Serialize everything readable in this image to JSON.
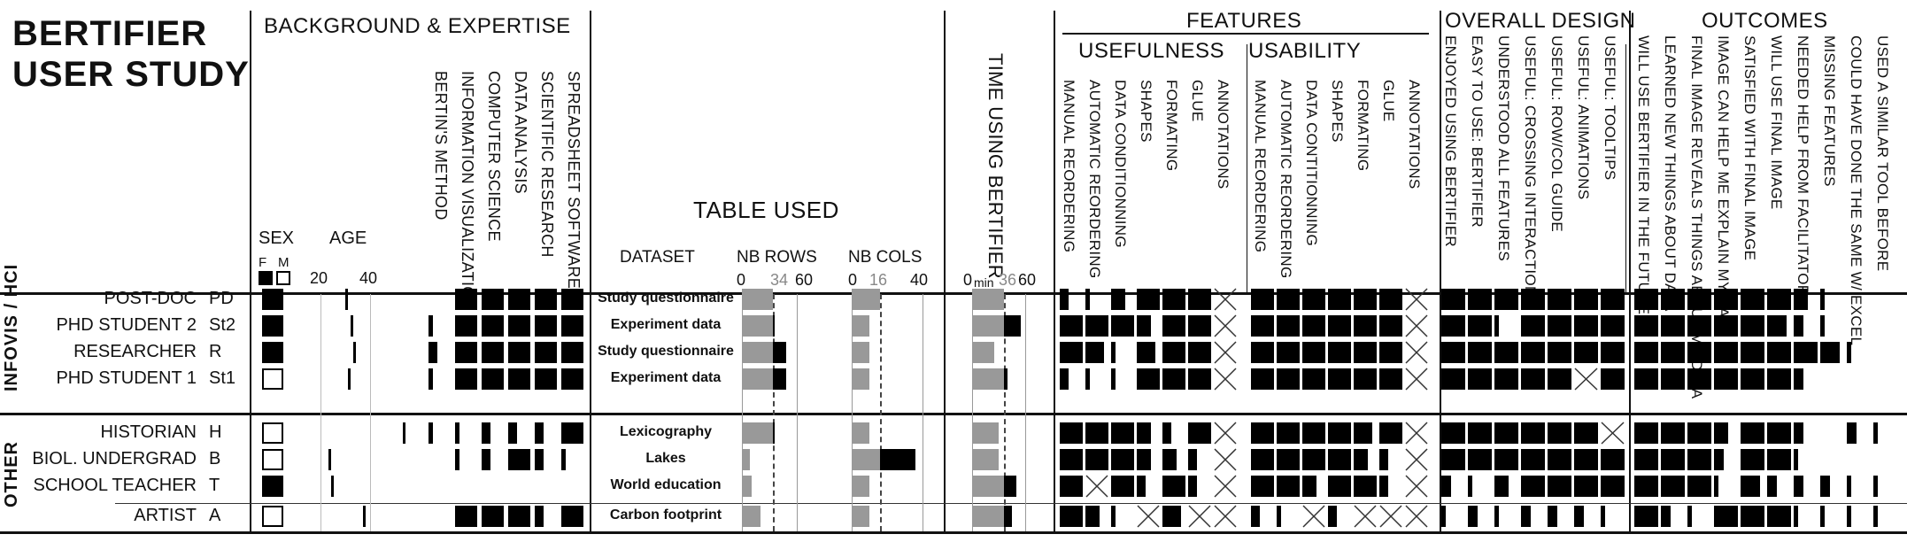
{
  "title": [
    "BERTIFIER",
    "USER STUDY"
  ],
  "sections": {
    "background": "BACKGROUND & EXPERTISE",
    "table_used": "TABLE USED",
    "features": "FEATURES",
    "usefulness": "USEFULNESS",
    "usability": "USABILITY",
    "overall": "OVERALL DESIGN",
    "outcomes": "OUTCOMES"
  },
  "labels": {
    "sex": "SEX",
    "f": "F",
    "m": "M",
    "age": "AGE",
    "age_ticks": [
      "20",
      "40"
    ],
    "dataset": "DATASET",
    "nb_rows": "NB ROWS",
    "rows_ticks": [
      "0",
      "34",
      "60"
    ],
    "nb_cols": "NB COLS",
    "cols_ticks": [
      "0",
      "16",
      "40"
    ],
    "time": "TIME USING BERTIFIER",
    "time_ticks": [
      "0",
      "min",
      "36",
      "60"
    ]
  },
  "expertise_cols": [
    "BERTIN'S METHOD",
    "INFORMATION VISUALIZATION",
    "COMPUTER SCIENCE",
    "DATA ANALYSIS",
    "SCIENTIFIC RESEARCH",
    "SPREADSHEET SOFTWARE"
  ],
  "usefulness_cols": [
    "MANUAL REORDERING",
    "AUTOMATIC REORDERING",
    "DATA CONDITIONNING",
    "SHAPES",
    "FORMATING",
    "GLUE",
    "ANNOTATIONS"
  ],
  "usability_cols": [
    "MANUAL REORDERING",
    "AUTOMATIC REORDERING",
    "DATA CONTITIONNING",
    "SHAPES",
    "FORMATING",
    "GLUE",
    "ANNOTATIONS"
  ],
  "overall_cols": [
    "ENJOYED USING BERTIFIER",
    "EASY TO USE: BERTIFIER",
    "UNDERSTOOD ALL FEATURES",
    "USEFUL: CROSSING INTERACTIONS",
    "USEFUL: ROW/COL GUIDE",
    "USEFUL: ANIMATIONS",
    "USEFUL: TOOLTIPS"
  ],
  "outcomes_cols": [
    "WILL USE BERTIFIER IN THE FUTURE",
    "LEARNED NEW THINGS ABOUT DATA",
    "FINAL IMAGE REVEALS THINGS ABOUT MY DATA",
    "IMAGE CAN HELP ME EXPLAIN MY DATA",
    "SATISFIED WITH FINAL IMAGE",
    "WILL USE FINAL IMAGE",
    "NEEDED HELP FROM FACILITATOR",
    "MISSING FEATURES",
    "COULD HAVE DONE THE SAME W/ EXCEL",
    "USED A SIMILAR TOOL BEFORE"
  ],
  "groups": [
    {
      "name": "INFOVIS / HCI",
      "rows": [
        0,
        1,
        2,
        3
      ]
    },
    {
      "name": "OTHER",
      "rows": [
        4,
        5,
        6,
        7
      ]
    }
  ],
  "participants": [
    {
      "label": "POST-DOC",
      "code": "PD",
      "sex": "F",
      "age": 28,
      "expertise": [
        0,
        5,
        5,
        5,
        5,
        5
      ],
      "dataset": "Study questionnaire",
      "rows": 34,
      "cols": 16,
      "time": 36,
      "usefulness": [
        2,
        1,
        3,
        5,
        5,
        5,
        "x"
      ],
      "usability": [
        5,
        5,
        5,
        5,
        5,
        5,
        "x"
      ],
      "overall": [
        5,
        5,
        5,
        5,
        5,
        5,
        5
      ],
      "outcomes": [
        5,
        5,
        5,
        5,
        5,
        5,
        3,
        1,
        0,
        0
      ]
    },
    {
      "label": "PHD STUDENT 2",
      "code": "St2",
      "sex": "F",
      "age": 30,
      "expertise": [
        1,
        5,
        5,
        5,
        5,
        5
      ],
      "dataset": "Experiment data",
      "rows": 36,
      "cols": 10,
      "time": 55,
      "usefulness": [
        5,
        5,
        5,
        3,
        5,
        5,
        "x"
      ],
      "usability": [
        5,
        5,
        5,
        5,
        5,
        5,
        "x"
      ],
      "overall": [
        5,
        5,
        1,
        5,
        5,
        5,
        5
      ],
      "outcomes": [
        5,
        5,
        5,
        5,
        5,
        4,
        2,
        1,
        0,
        0
      ]
    },
    {
      "label": "RESEARCHER",
      "code": "R",
      "sex": "F",
      "age": 31,
      "expertise": [
        2,
        5,
        5,
        5,
        5,
        5
      ],
      "dataset": "Study questionnaire",
      "rows": 48,
      "cols": 10,
      "time": 25,
      "usefulness": [
        5,
        4,
        1,
        4,
        5,
        5,
        "x"
      ],
      "usability": [
        5,
        5,
        5,
        5,
        5,
        5,
        "x"
      ],
      "overall": [
        5,
        5,
        5,
        5,
        5,
        5,
        5
      ],
      "outcomes": [
        5,
        5,
        5,
        5,
        5,
        5,
        5,
        4,
        1,
        0
      ]
    },
    {
      "label": "PHD STUDENT 1",
      "code": "St1",
      "sex": "M",
      "age": 29,
      "expertise": [
        1,
        5,
        5,
        5,
        5,
        5
      ],
      "dataset": "Experiment data",
      "rows": 48,
      "cols": 10,
      "time": 40,
      "usefulness": [
        2,
        1,
        1,
        5,
        5,
        5,
        "x"
      ],
      "usability": [
        5,
        5,
        5,
        5,
        5,
        5,
        "x"
      ],
      "overall": [
        5,
        5,
        5,
        5,
        5,
        "x",
        5
      ],
      "outcomes": [
        5,
        5,
        5,
        5,
        5,
        5,
        2,
        0,
        0,
        0
      ]
    },
    {
      "label": "HISTORIAN",
      "code": "H",
      "sex": "M",
      "age": 51,
      "expertise": [
        1,
        1,
        2,
        2,
        2,
        5
      ],
      "dataset": "Lexicography",
      "rows": 36,
      "cols": 10,
      "time": 30,
      "usefulness": [
        5,
        5,
        5,
        3,
        2,
        5,
        "x"
      ],
      "usability": [
        5,
        5,
        5,
        5,
        4,
        5,
        "x"
      ],
      "overall": [
        5,
        5,
        5,
        5,
        5,
        5,
        "x"
      ],
      "outcomes": [
        5,
        5,
        5,
        3,
        5,
        5,
        2,
        0,
        2,
        1
      ]
    },
    {
      "label": "BIOL. UNDERGRAD",
      "code": "B",
      "sex": "M",
      "age": 21,
      "expertise": [
        0,
        1,
        2,
        5,
        2,
        1
      ],
      "dataset": "Lakes",
      "rows": 9,
      "cols": 36,
      "time": 30,
      "usefulness": [
        5,
        5,
        5,
        3,
        3,
        2,
        "x"
      ],
      "usability": [
        5,
        5,
        5,
        5,
        3,
        2,
        "x"
      ],
      "overall": [
        5,
        5,
        5,
        5,
        5,
        5,
        5
      ],
      "outcomes": [
        5,
        5,
        5,
        2,
        5,
        5,
        1,
        0,
        0,
        0
      ]
    },
    {
      "label": "SCHOOL TEACHER",
      "code": "T",
      "sex": "F",
      "age": 22,
      "expertise": [
        0,
        0,
        0,
        0,
        0,
        0
      ],
      "dataset": "World education",
      "rows": 11,
      "cols": 10,
      "time": 50,
      "usefulness": [
        5,
        "x",
        5,
        2,
        5,
        2,
        "x"
      ],
      "usability": [
        5,
        5,
        3,
        5,
        5,
        2,
        "x"
      ],
      "overall": [
        2,
        1,
        3,
        5,
        5,
        5,
        5
      ],
      "outcomes": [
        5,
        5,
        5,
        1,
        4,
        2,
        2,
        2,
        1,
        1
      ]
    },
    {
      "label": "ARTIST",
      "code": "A",
      "sex": "M",
      "age": 35,
      "expertise": [
        0,
        5,
        5,
        5,
        2,
        5
      ],
      "dataset": "Carbon footprint",
      "rows": 20,
      "cols": 10,
      "time": 45,
      "usefulness": [
        5,
        3,
        1,
        "x",
        4,
        "x",
        "x"
      ],
      "usability": [
        2,
        1,
        "x",
        2,
        "x",
        "x",
        "x"
      ],
      "overall": [
        1,
        2,
        1,
        2,
        2,
        2,
        1
      ],
      "outcomes": [
        5,
        2,
        1,
        5,
        5,
        5,
        1,
        1,
        1,
        1
      ]
    }
  ]
}
